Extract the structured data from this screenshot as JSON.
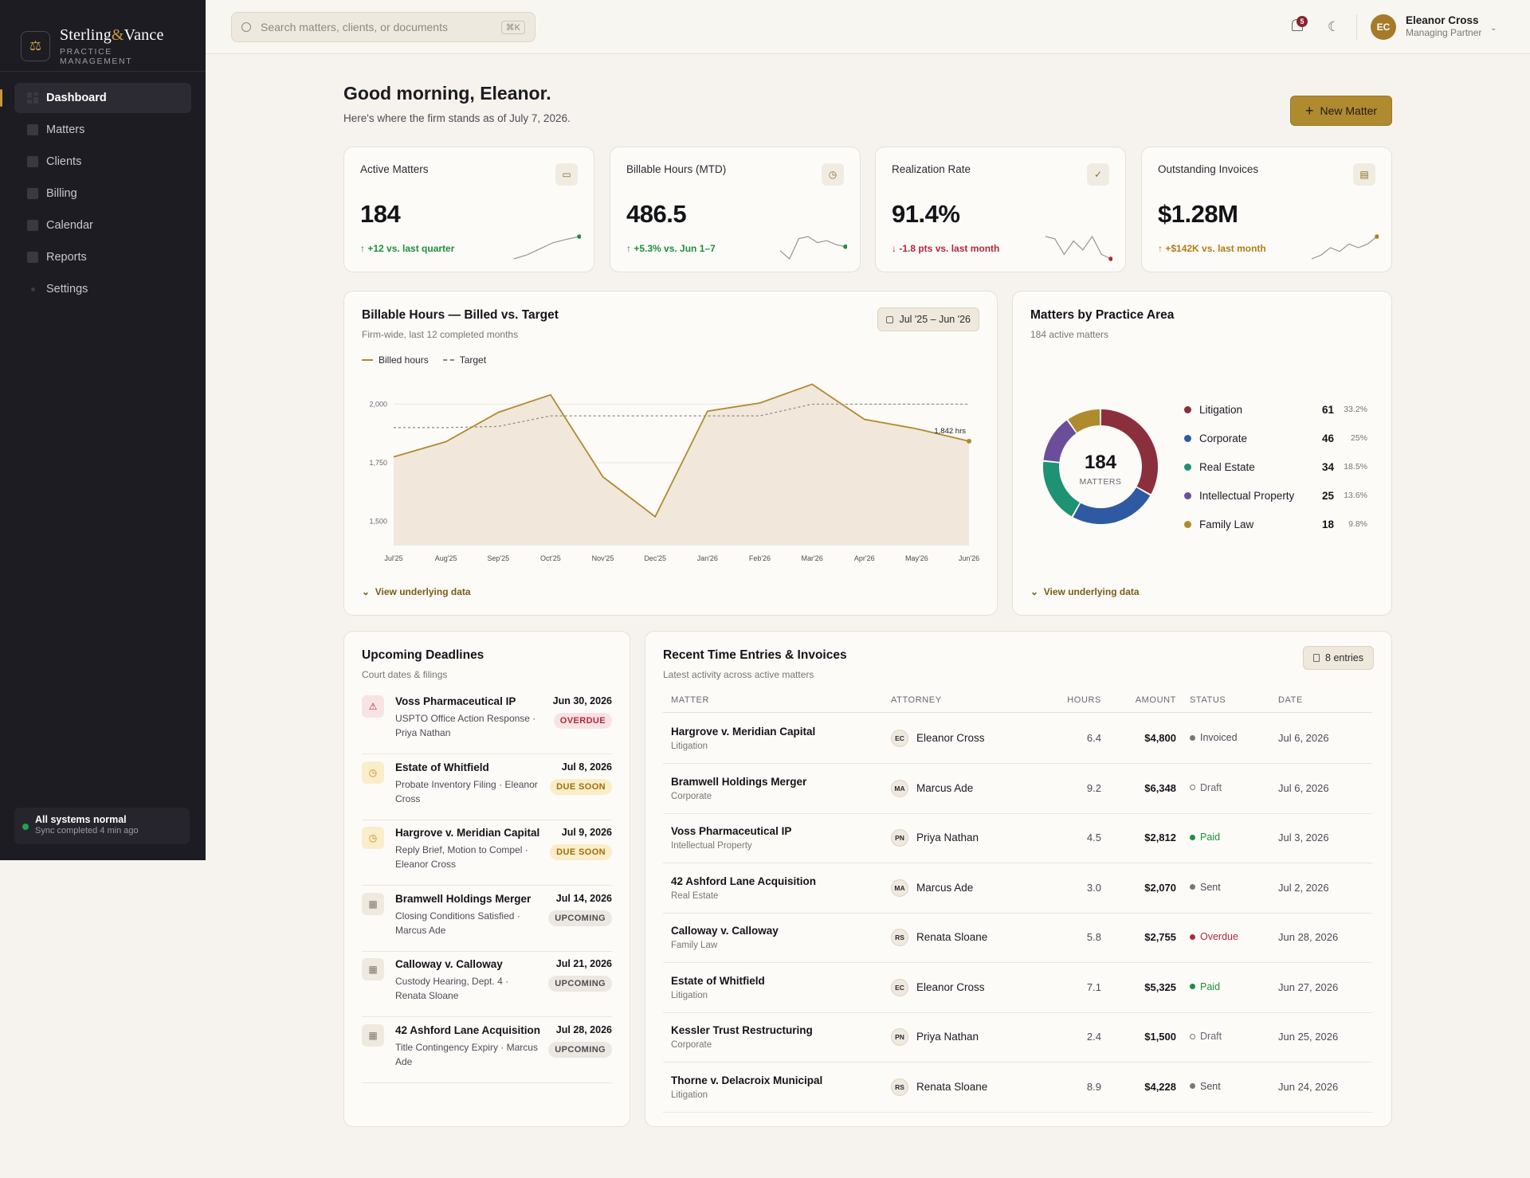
{
  "brand": {
    "name_a": "Sterling",
    "amp": "&",
    "name_b": "Vance",
    "sub": "PRACTICE MANAGEMENT"
  },
  "nav": [
    {
      "label": "Dashboard",
      "active": true
    },
    {
      "label": "Matters"
    },
    {
      "label": "Clients"
    },
    {
      "label": "Billing"
    },
    {
      "label": "Calendar"
    },
    {
      "label": "Reports"
    },
    {
      "label": "Settings"
    }
  ],
  "system_status": {
    "title": "All systems normal",
    "sub": "Sync completed 4 min ago"
  },
  "search": {
    "placeholder": "Search matters, clients, or documents",
    "shortcut": "⌘K"
  },
  "notifications": {
    "count": "5"
  },
  "user": {
    "initials": "EC",
    "name": "Eleanor Cross",
    "role": "Managing Partner"
  },
  "greeting": {
    "title": "Good morning, Eleanor.",
    "sub": "Here's where the firm stands as of July 7, 2026."
  },
  "new_matter_label": "New Matter",
  "kpis": [
    {
      "label": "Active Matters",
      "value": "184",
      "delta": "+12 vs. last quarter",
      "trend": "up",
      "spark": [
        2,
        3,
        4.5,
        6,
        6.8,
        7.5
      ]
    },
    {
      "label": "Billable Hours (MTD)",
      "value": "486.5",
      "delta": "+5.3% vs. Jun 1–7",
      "trend": "up",
      "spark": [
        3,
        1,
        6,
        6.5,
        5,
        5.5,
        4.5,
        4
      ]
    },
    {
      "label": "Realization Rate",
      "value": "91.4%",
      "delta": "-1.8 pts vs. last month",
      "trend": "down",
      "spark": [
        7,
        6.5,
        3,
        6,
        4,
        7,
        3,
        2
      ]
    },
    {
      "label": "Outstanding Invoices",
      "value": "$1.28M",
      "delta": "+$142K vs. last month",
      "trend": "amber",
      "spark": [
        2,
        3,
        5,
        4,
        6,
        5,
        6,
        8
      ]
    }
  ],
  "hours_chart": {
    "title": "Billable Hours — Billed vs. Target",
    "sub": "Firm-wide, last 12 completed months",
    "range": "Jul '25 – Jun '26",
    "legend_billed": "Billed hours",
    "legend_target": "Target",
    "view_data": "View underlying data",
    "end_label": "1,842 hrs",
    "accent": "#b08a2e"
  },
  "chart_data": [
    {
      "type": "line",
      "title": "Billable Hours — Billed vs. Target",
      "categories": [
        "Jul'25",
        "Aug'25",
        "Sep'25",
        "Oct'25",
        "Nov'25",
        "Dec'25",
        "Jan'26",
        "Feb'26",
        "Mar'26",
        "Apr'26",
        "May'26",
        "Jun'26"
      ],
      "series": [
        {
          "name": "Billed hours",
          "values": [
            1775,
            1840,
            1965,
            2040,
            1690,
            1520,
            1970,
            2005,
            2085,
            1935,
            1895,
            1842
          ]
        },
        {
          "name": "Target",
          "values": [
            1900,
            1900,
            1905,
            1950,
            1950,
            1950,
            1950,
            1950,
            2000,
            2000,
            2000,
            2000
          ]
        }
      ],
      "ylim": [
        1400,
        2100
      ],
      "yticks": [
        "1,500",
        "1,750",
        "2,000"
      ],
      "ytick_values": [
        1500,
        1750,
        2000
      ]
    },
    {
      "type": "pie",
      "title": "Matters by Practice Area",
      "center_value": "184",
      "center_label": "MATTERS",
      "slices": [
        {
          "name": "Litigation",
          "value": 61,
          "pct": "33.2%",
          "color": "#8b2f3c"
        },
        {
          "name": "Corporate",
          "value": 46,
          "pct": "25%",
          "color": "#2f5aa3"
        },
        {
          "name": "Real Estate",
          "value": 34,
          "pct": "18.5%",
          "color": "#1e9272"
        },
        {
          "name": "Intellectual Property",
          "value": 25,
          "pct": "13.6%",
          "color": "#6b4e9b"
        },
        {
          "name": "Family Law",
          "value": 18,
          "pct": "9.8%",
          "color": "#b08a2e"
        }
      ]
    }
  ],
  "practice": {
    "title": "Matters by Practice Area",
    "sub": "184 active matters",
    "view_data": "View underlying data"
  },
  "deadlines": {
    "title": "Upcoming Deadlines",
    "sub": "Court dates & filings",
    "items": [
      {
        "title": "Voss Pharmaceutical IP",
        "desc": "USPTO Office Action Response · Priya Nathan",
        "date": "Jun 30, 2026",
        "badge": "OVERDUE",
        "kind": "danger"
      },
      {
        "title": "Estate of Whitfield",
        "desc": "Probate Inventory Filing · Eleanor Cross",
        "date": "Jul 8, 2026",
        "badge": "DUE SOON",
        "kind": "warn"
      },
      {
        "title": "Hargrove v. Meridian Capital",
        "desc": "Reply Brief, Motion to Compel · Eleanor Cross",
        "date": "Jul 9, 2026",
        "badge": "DUE SOON",
        "kind": "warn"
      },
      {
        "title": "Bramwell Holdings Merger",
        "desc": "Closing Conditions Satisfied · Marcus Ade",
        "date": "Jul 14, 2026",
        "badge": "UPCOMING",
        "kind": "muted"
      },
      {
        "title": "Calloway v. Calloway",
        "desc": "Custody Hearing, Dept. 4 · Renata Sloane",
        "date": "Jul 21, 2026",
        "badge": "UPCOMING",
        "kind": "muted"
      },
      {
        "title": "42 Ashford Lane Acquisition",
        "desc": "Title Contingency Expiry · Marcus Ade",
        "date": "Jul 28, 2026",
        "badge": "UPCOMING",
        "kind": "muted"
      }
    ]
  },
  "entries": {
    "title": "Recent Time Entries & Invoices",
    "sub": "Latest activity across active matters",
    "count_label": "8 entries",
    "headers": {
      "matter": "MATTER",
      "attorney": "ATTORNEY",
      "hours": "HOURS",
      "amount": "AMOUNT",
      "status": "STATUS",
      "date": "DATE"
    },
    "rows": [
      {
        "matter": "Hargrove v. Meridian Capital",
        "area": "Litigation",
        "initials": "EC",
        "attorney": "Eleanor Cross",
        "hours": "6.4",
        "amount": "$4,800",
        "status": "Invoiced",
        "date": "Jul 6, 2026"
      },
      {
        "matter": "Bramwell Holdings Merger",
        "area": "Corporate",
        "initials": "MA",
        "attorney": "Marcus Ade",
        "hours": "9.2",
        "amount": "$6,348",
        "status": "Draft",
        "date": "Jul 6, 2026"
      },
      {
        "matter": "Voss Pharmaceutical IP",
        "area": "Intellectual Property",
        "initials": "PN",
        "attorney": "Priya Nathan",
        "hours": "4.5",
        "amount": "$2,812",
        "status": "Paid",
        "date": "Jul 3, 2026"
      },
      {
        "matter": "42 Ashford Lane Acquisition",
        "area": "Real Estate",
        "initials": "MA",
        "attorney": "Marcus Ade",
        "hours": "3.0",
        "amount": "$2,070",
        "status": "Sent",
        "date": "Jul 2, 2026"
      },
      {
        "matter": "Calloway v. Calloway",
        "area": "Family Law",
        "initials": "RS",
        "attorney": "Renata Sloane",
        "hours": "5.8",
        "amount": "$2,755",
        "status": "Overdue",
        "date": "Jun 28, 2026"
      },
      {
        "matter": "Estate of Whitfield",
        "area": "Litigation",
        "initials": "EC",
        "attorney": "Eleanor Cross",
        "hours": "7.1",
        "amount": "$5,325",
        "status": "Paid",
        "date": "Jun 27, 2026"
      },
      {
        "matter": "Kessler Trust Restructuring",
        "area": "Corporate",
        "initials": "PN",
        "attorney": "Priya Nathan",
        "hours": "2.4",
        "amount": "$1,500",
        "status": "Draft",
        "date": "Jun 25, 2026"
      },
      {
        "matter": "Thorne v. Delacroix Municipal",
        "area": "Litigation",
        "initials": "RS",
        "attorney": "Renata Sloane",
        "hours": "8.9",
        "amount": "$4,228",
        "status": "Sent",
        "date": "Jun 24, 2026"
      }
    ]
  },
  "colors": {
    "accent": "#b08a2e",
    "up": "#1e8e3e",
    "down": "#b2283a",
    "amber": "#b07d16",
    "sidebar": "#1c1c22"
  }
}
